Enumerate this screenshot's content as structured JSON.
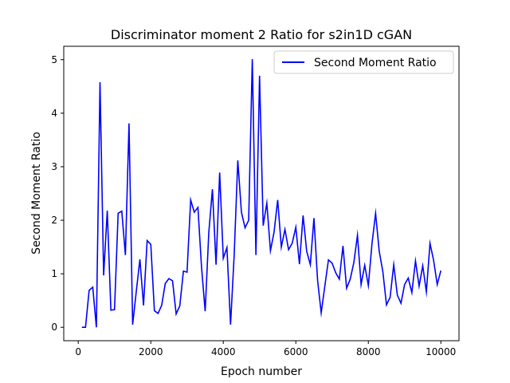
{
  "chart_data": {
    "type": "line",
    "title": "Discriminator moment 2 Ratio for s2in1D cGAN",
    "xlabel": "Epoch number",
    "ylabel": "Second Moment Ratio",
    "xlim": [
      -400,
      10500
    ],
    "ylim": [
      -0.25,
      5.25
    ],
    "xticks": [
      0,
      2000,
      4000,
      6000,
      8000,
      10000
    ],
    "xtick_labels": [
      "0",
      "2000",
      "4000",
      "6000",
      "8000",
      "10000"
    ],
    "yticks": [
      0,
      1,
      2,
      3,
      4,
      5
    ],
    "ytick_labels": [
      "0",
      "1",
      "2",
      "3",
      "4",
      "5"
    ],
    "grid": false,
    "legend_position": "top-right",
    "series": [
      {
        "name": "Second Moment Ratio",
        "color": "#0000ff",
        "x": [
          100,
          200,
          300,
          400,
          500,
          600,
          700,
          800,
          900,
          1000,
          1100,
          1200,
          1300,
          1400,
          1500,
          1600,
          1700,
          1800,
          1900,
          2000,
          2100,
          2200,
          2300,
          2400,
          2500,
          2600,
          2700,
          2800,
          2900,
          3000,
          3100,
          3200,
          3300,
          3400,
          3500,
          3600,
          3700,
          3800,
          3900,
          4000,
          4100,
          4200,
          4300,
          4400,
          4500,
          4600,
          4700,
          4800,
          4900,
          5000,
          5100,
          5200,
          5300,
          5400,
          5500,
          5600,
          5700,
          5800,
          5900,
          6000,
          6100,
          6200,
          6300,
          6400,
          6500,
          6600,
          6700,
          6800,
          6900,
          7000,
          7100,
          7200,
          7300,
          7400,
          7500,
          7600,
          7700,
          7800,
          7900,
          8000,
          8100,
          8200,
          8300,
          8400,
          8500,
          8600,
          8700,
          8800,
          8900,
          9000,
          9100,
          9200,
          9300,
          9400,
          9500,
          9600,
          9700,
          9800,
          9900,
          10000
        ],
        "values": [
          0.0,
          0.0,
          0.69,
          0.75,
          0.0,
          4.58,
          0.97,
          2.18,
          0.32,
          0.33,
          2.13,
          2.17,
          1.35,
          3.81,
          0.05,
          0.67,
          1.27,
          0.41,
          1.62,
          1.55,
          0.31,
          0.26,
          0.41,
          0.82,
          0.91,
          0.87,
          0.25,
          0.4,
          1.05,
          1.03,
          2.38,
          2.15,
          2.24,
          1.12,
          0.3,
          1.77,
          2.58,
          1.17,
          2.89,
          1.29,
          1.49,
          0.05,
          1.35,
          3.12,
          2.15,
          1.86,
          2.0,
          5.01,
          1.35,
          4.7,
          1.9,
          2.32,
          1.43,
          1.78,
          2.38,
          1.5,
          1.83,
          1.45,
          1.57,
          1.87,
          1.18,
          2.09,
          1.42,
          1.17,
          2.04,
          0.88,
          0.27,
          0.77,
          1.26,
          1.2,
          1.02,
          0.9,
          1.52,
          0.73,
          0.9,
          1.21,
          1.72,
          0.8,
          1.16,
          0.78,
          1.56,
          2.13,
          1.42,
          1.04,
          0.42,
          0.56,
          1.17,
          0.6,
          0.45,
          0.8,
          0.92,
          0.65,
          1.24,
          0.77,
          1.15,
          0.66,
          1.57,
          1.25,
          0.8,
          1.06
        ]
      }
    ]
  }
}
